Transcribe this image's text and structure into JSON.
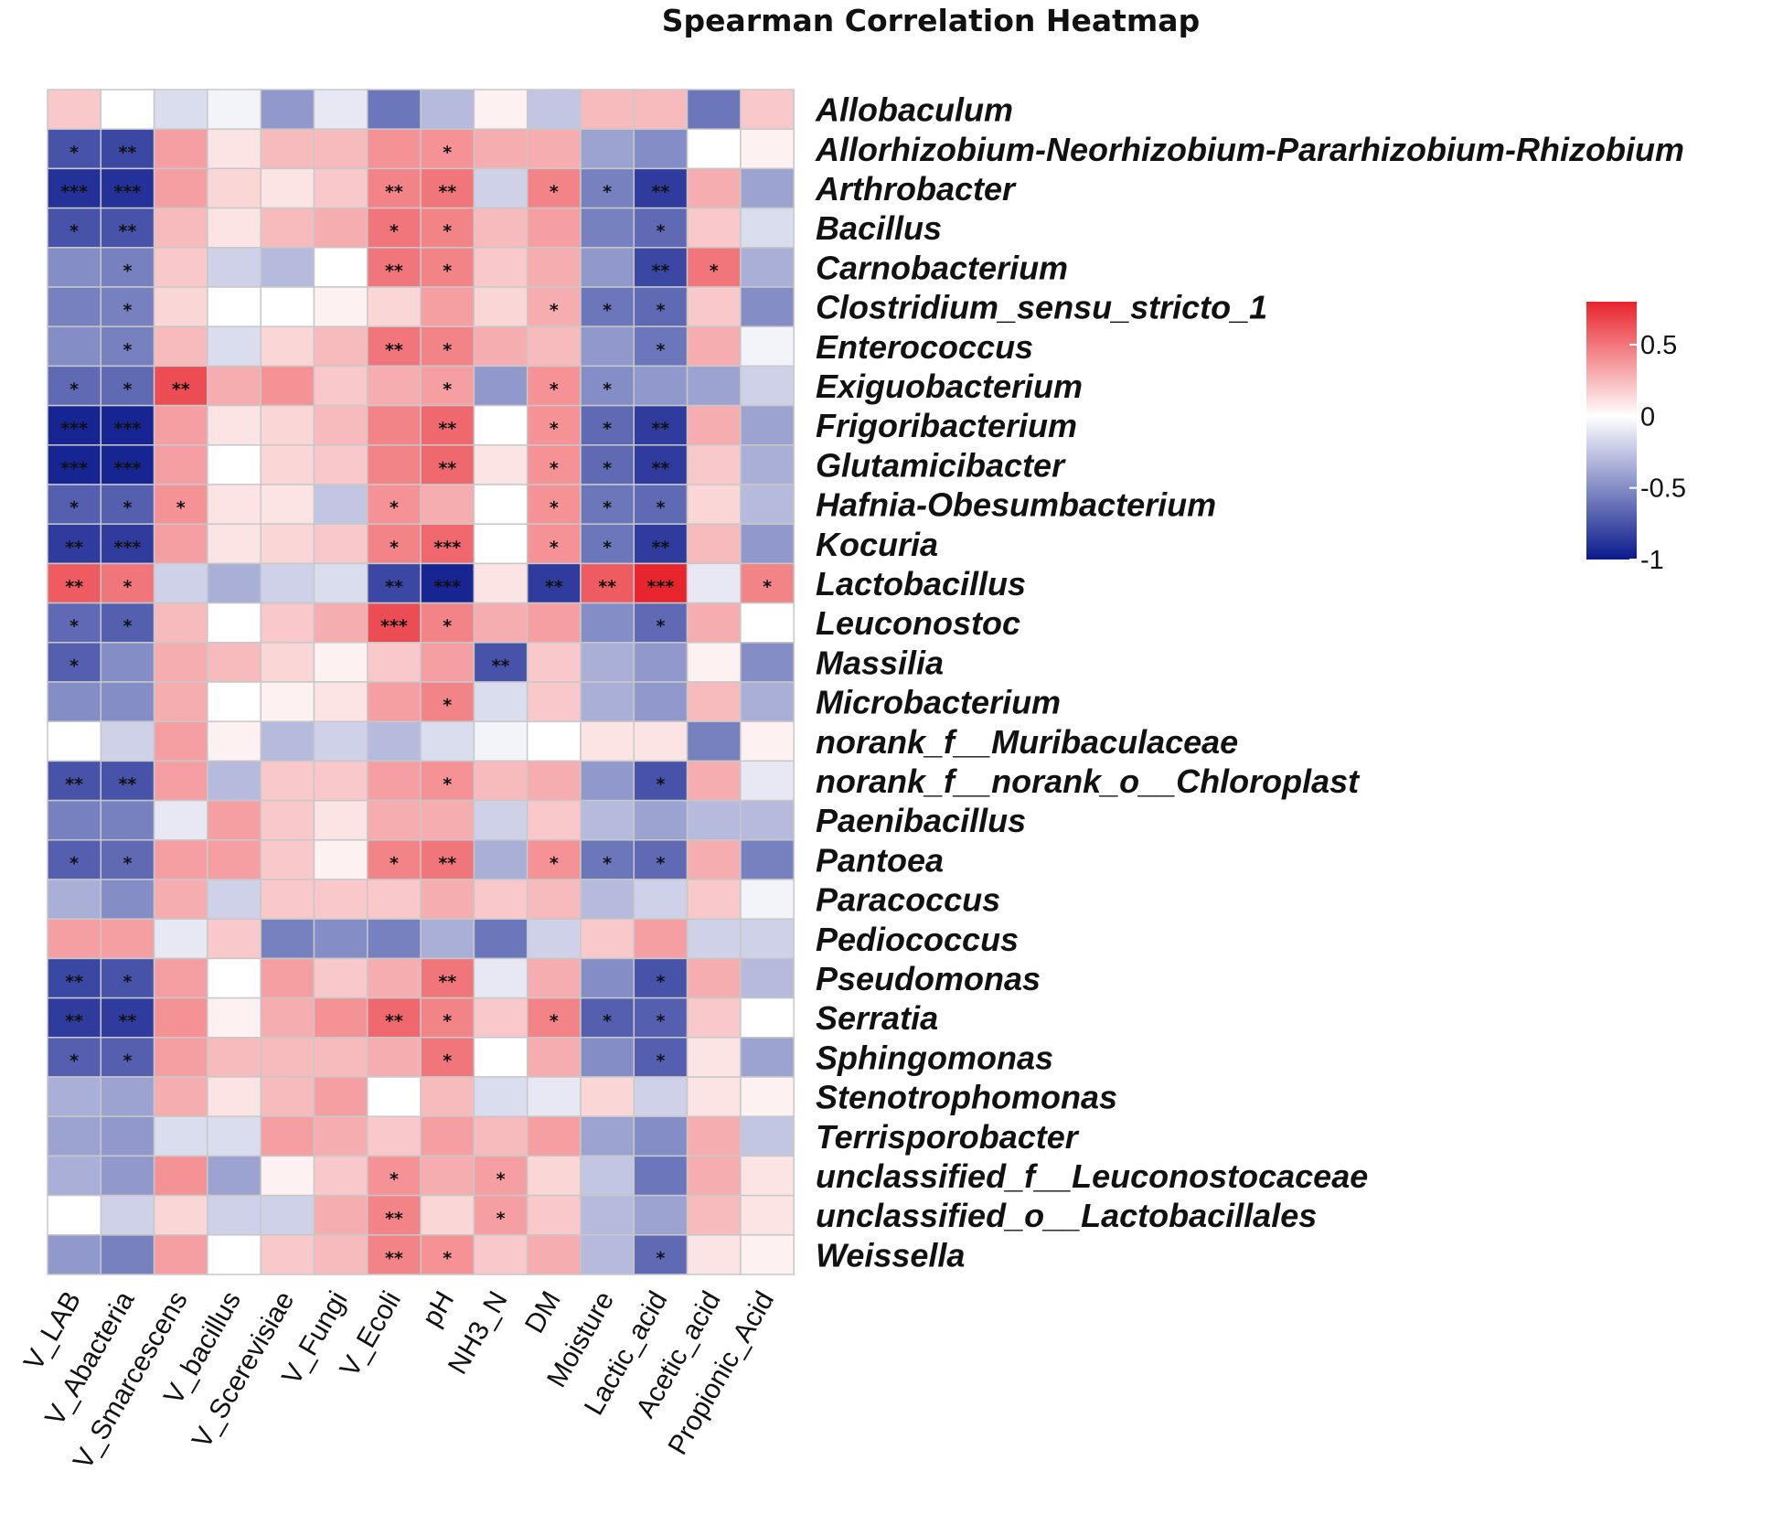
{
  "chart_data": {
    "type": "heatmap",
    "title": "Spearman Correlation Heatmap",
    "columns": [
      "V_LAB",
      "V_Abacteria",
      "V_Smarcescens",
      "V_bacillus",
      "V_Scerevisiae",
      "V_Fungi",
      "V_Ecoli",
      "pH",
      "NH3_N",
      "DM",
      "Moisture",
      "Lactic_acid",
      "Acetic_acid",
      "Propionic_Acid"
    ],
    "rows": [
      "Allobaculum",
      "Allorhizobium-Neorhizobium-Pararhizobium-Rhizobium",
      "Arthrobacter",
      "Bacillus",
      "Carnobacterium",
      "Clostridium_sensu_stricto_1",
      "Enterococcus",
      "Exiguobacterium",
      "Frigoribacterium",
      "Glutamicibacter",
      "Hafnia-Obesumbacterium",
      "Kocuria",
      "Lactobacillus",
      "Leuconostoc",
      "Massilia",
      "Microbacterium",
      "norank_f__Muribaculaceae",
      "norank_f__norank_o__Chloroplast",
      "Paenibacillus",
      "Pantoea",
      "Paracoccus",
      "Pediococcus",
      "Pseudomonas",
      "Serratia",
      "Sphingomonas",
      "Stenotrophomonas",
      "Terrisporobacter",
      "unclassified_f__Leuconostocaceae",
      "unclassified_o__Lactobacillales",
      "Weissella"
    ],
    "values": [
      [
        0.2,
        0.0,
        -0.15,
        -0.05,
        -0.45,
        -0.1,
        -0.6,
        -0.3,
        0.05,
        -0.25,
        0.25,
        0.25,
        -0.6,
        0.2
      ],
      [
        -0.75,
        -0.8,
        0.35,
        0.1,
        0.25,
        0.25,
        0.4,
        0.4,
        0.3,
        0.3,
        -0.4,
        -0.5,
        0.0,
        0.05
      ],
      [
        -0.9,
        -0.9,
        0.35,
        0.15,
        0.1,
        0.2,
        0.45,
        0.5,
        -0.2,
        0.45,
        -0.55,
        -0.85,
        0.3,
        -0.4
      ],
      [
        -0.75,
        -0.75,
        0.25,
        0.1,
        0.25,
        0.3,
        0.5,
        0.45,
        0.25,
        0.35,
        -0.55,
        -0.65,
        0.2,
        -0.15
      ],
      [
        -0.5,
        -0.55,
        0.2,
        -0.2,
        -0.3,
        0.0,
        0.5,
        0.45,
        0.2,
        0.3,
        -0.45,
        -0.8,
        0.5,
        -0.35
      ],
      [
        -0.55,
        -0.55,
        0.15,
        0.0,
        0.0,
        0.05,
        0.15,
        0.35,
        0.15,
        0.3,
        -0.6,
        -0.65,
        0.2,
        -0.5
      ],
      [
        -0.5,
        -0.55,
        0.25,
        -0.15,
        0.15,
        0.25,
        0.5,
        0.45,
        0.3,
        0.25,
        -0.45,
        -0.6,
        0.3,
        -0.05
      ],
      [
        -0.65,
        -0.65,
        0.65,
        0.3,
        0.4,
        0.2,
        0.3,
        0.35,
        -0.45,
        0.4,
        -0.5,
        -0.45,
        -0.4,
        -0.2
      ],
      [
        -0.95,
        -0.95,
        0.35,
        0.1,
        0.15,
        0.25,
        0.45,
        0.55,
        0.0,
        0.4,
        -0.65,
        -0.85,
        0.3,
        -0.4
      ],
      [
        -0.95,
        -0.95,
        0.35,
        0.0,
        0.15,
        0.2,
        0.45,
        0.55,
        0.1,
        0.4,
        -0.65,
        -0.85,
        0.2,
        -0.35
      ],
      [
        -0.7,
        -0.7,
        0.4,
        0.1,
        0.1,
        -0.25,
        0.4,
        0.3,
        0.0,
        0.4,
        -0.6,
        -0.65,
        0.15,
        -0.3
      ],
      [
        -0.85,
        -0.85,
        0.35,
        0.1,
        0.15,
        0.2,
        0.45,
        0.55,
        0.0,
        0.4,
        -0.6,
        -0.85,
        0.25,
        -0.45
      ],
      [
        0.6,
        0.5,
        -0.2,
        -0.35,
        -0.2,
        -0.15,
        -0.8,
        -0.95,
        0.1,
        -0.85,
        0.6,
        0.8,
        -0.1,
        0.45
      ],
      [
        -0.65,
        -0.7,
        0.25,
        0.0,
        0.2,
        0.3,
        0.65,
        0.45,
        0.3,
        0.35,
        -0.5,
        -0.65,
        0.3,
        0.0
      ],
      [
        -0.7,
        -0.5,
        0.3,
        0.25,
        0.15,
        0.05,
        0.2,
        0.35,
        -0.75,
        0.2,
        -0.35,
        -0.45,
        0.05,
        -0.5
      ],
      [
        -0.5,
        -0.5,
        0.3,
        0.0,
        0.05,
        0.1,
        0.35,
        0.45,
        -0.15,
        0.2,
        -0.35,
        -0.45,
        0.25,
        -0.35
      ],
      [
        0.0,
        -0.2,
        0.35,
        0.05,
        -0.3,
        -0.2,
        -0.3,
        -0.15,
        -0.05,
        0.0,
        0.1,
        0.1,
        -0.55,
        0.05
      ],
      [
        -0.75,
        -0.75,
        0.35,
        -0.3,
        0.2,
        0.2,
        0.35,
        0.4,
        0.25,
        0.3,
        -0.45,
        -0.75,
        0.3,
        -0.1
      ],
      [
        -0.55,
        -0.55,
        -0.1,
        0.35,
        0.2,
        0.1,
        0.3,
        0.3,
        -0.2,
        0.2,
        -0.3,
        -0.4,
        -0.3,
        -0.3
      ],
      [
        -0.7,
        -0.65,
        0.35,
        0.35,
        0.2,
        0.05,
        0.45,
        0.5,
        -0.35,
        0.4,
        -0.6,
        -0.65,
        0.3,
        -0.55
      ],
      [
        -0.35,
        -0.5,
        0.3,
        -0.2,
        0.2,
        0.2,
        0.2,
        0.3,
        0.2,
        0.25,
        -0.3,
        -0.2,
        0.2,
        -0.05
      ],
      [
        0.35,
        0.35,
        -0.1,
        0.2,
        -0.55,
        -0.5,
        -0.55,
        -0.35,
        -0.6,
        -0.2,
        0.2,
        0.35,
        -0.2,
        -0.2
      ],
      [
        -0.8,
        -0.75,
        0.35,
        0.0,
        0.35,
        0.2,
        0.3,
        0.5,
        -0.1,
        0.3,
        -0.5,
        -0.75,
        0.3,
        -0.3
      ],
      [
        -0.85,
        -0.85,
        0.4,
        0.05,
        0.3,
        0.4,
        0.55,
        0.45,
        0.2,
        0.45,
        -0.7,
        -0.7,
        0.2,
        0.0
      ],
      [
        -0.7,
        -0.7,
        0.35,
        0.25,
        0.25,
        0.25,
        0.3,
        0.5,
        0.0,
        0.3,
        -0.5,
        -0.7,
        0.1,
        -0.4
      ],
      [
        -0.35,
        -0.4,
        0.3,
        0.1,
        0.25,
        0.35,
        0.0,
        0.25,
        -0.15,
        -0.1,
        0.15,
        -0.2,
        0.1,
        0.05
      ],
      [
        -0.4,
        -0.45,
        -0.15,
        -0.15,
        0.35,
        0.3,
        0.2,
        0.35,
        0.25,
        0.35,
        -0.4,
        -0.5,
        0.3,
        -0.25
      ],
      [
        -0.35,
        -0.45,
        0.4,
        -0.4,
        0.05,
        0.2,
        0.4,
        0.3,
        0.35,
        0.15,
        -0.25,
        -0.6,
        0.3,
        0.1
      ],
      [
        0.0,
        -0.2,
        0.15,
        -0.2,
        -0.2,
        0.3,
        0.45,
        0.15,
        0.35,
        0.2,
        -0.3,
        -0.4,
        0.25,
        0.1
      ],
      [
        -0.45,
        -0.55,
        0.35,
        0.0,
        0.2,
        0.25,
        0.45,
        0.4,
        0.2,
        0.3,
        -0.3,
        -0.65,
        0.1,
        0.05
      ]
    ],
    "significance": [
      [
        "",
        "",
        "",
        "",
        "",
        "",
        "",
        "",
        "",
        "",
        "",
        "",
        "",
        ""
      ],
      [
        "*",
        "**",
        "",
        "",
        "",
        "",
        "",
        "*",
        "",
        "",
        "",
        "",
        "",
        ""
      ],
      [
        "***",
        "***",
        "",
        "",
        "",
        "",
        "**",
        "**",
        "",
        "*",
        "*",
        "**",
        "",
        ""
      ],
      [
        "*",
        "**",
        "",
        "",
        "",
        "",
        "*",
        "*",
        "",
        "",
        "",
        "*",
        "",
        ""
      ],
      [
        "",
        "*",
        "",
        "",
        "",
        "",
        "**",
        "*",
        "",
        "",
        "",
        "**",
        "*",
        ""
      ],
      [
        "",
        "*",
        "",
        "",
        "",
        "",
        "",
        "",
        "",
        "*",
        "*",
        "*",
        "",
        ""
      ],
      [
        "",
        "*",
        "",
        "",
        "",
        "",
        "**",
        "*",
        "",
        "",
        "",
        "*",
        "",
        ""
      ],
      [
        "*",
        "*",
        "**",
        "",
        "",
        "",
        "",
        "*",
        "",
        "*",
        "*",
        "",
        "",
        ""
      ],
      [
        "***",
        "***",
        "",
        "",
        "",
        "",
        "",
        "**",
        "",
        "*",
        "*",
        "**",
        "",
        ""
      ],
      [
        "***",
        "***",
        "",
        "",
        "",
        "",
        "",
        "**",
        "",
        "*",
        "*",
        "**",
        "",
        ""
      ],
      [
        "*",
        "*",
        "*",
        "",
        "",
        "",
        "*",
        "",
        "",
        "*",
        "*",
        "*",
        "",
        ""
      ],
      [
        "**",
        "***",
        "",
        "",
        "",
        "",
        "*",
        "***",
        "",
        "*",
        "*",
        "**",
        "",
        ""
      ],
      [
        "**",
        "*",
        "",
        "",
        "",
        "",
        "**",
        "***",
        "",
        "**",
        "**",
        "***",
        "",
        "*"
      ],
      [
        "*",
        "*",
        "",
        "",
        "",
        "",
        "***",
        "*",
        "",
        "",
        "",
        "*",
        "",
        ""
      ],
      [
        "*",
        "",
        "",
        "",
        "",
        "",
        "",
        "",
        "**",
        "",
        "",
        "",
        "",
        ""
      ],
      [
        "",
        "",
        "",
        "",
        "",
        "",
        "",
        "*",
        "",
        "",
        "",
        "",
        "",
        ""
      ],
      [
        "",
        "",
        "",
        "",
        "",
        "",
        "",
        "",
        "",
        "",
        "",
        "",
        "",
        ""
      ],
      [
        "**",
        "**",
        "",
        "",
        "",
        "",
        "",
        "*",
        "",
        "",
        "",
        "*",
        "",
        ""
      ],
      [
        "",
        "",
        "",
        "",
        "",
        "",
        "",
        "",
        "",
        "",
        "",
        "",
        "",
        ""
      ],
      [
        "*",
        "*",
        "",
        "",
        "",
        "",
        "*",
        "**",
        "",
        "*",
        "*",
        "*",
        "",
        ""
      ],
      [
        "",
        "",
        "",
        "",
        "",
        "",
        "",
        "",
        "",
        "",
        "",
        "",
        "",
        ""
      ],
      [
        "",
        "",
        "",
        "",
        "",
        "",
        "",
        "",
        "",
        "",
        "",
        "",
        "",
        ""
      ],
      [
        "**",
        "*",
        "",
        "",
        "",
        "",
        "",
        "**",
        "",
        "",
        "",
        "*",
        "",
        ""
      ],
      [
        "**",
        "**",
        "",
        "",
        "",
        "",
        "**",
        "*",
        "",
        "*",
        "*",
        "*",
        "",
        ""
      ],
      [
        "*",
        "*",
        "",
        "",
        "",
        "",
        "",
        "*",
        "",
        "",
        "",
        "*",
        "",
        ""
      ],
      [
        "",
        "",
        "",
        "",
        "",
        "",
        "",
        "",
        "",
        "",
        "",
        "",
        "",
        ""
      ],
      [
        "",
        "",
        "",
        "",
        "",
        "",
        "",
        "",
        "",
        "",
        "",
        "",
        "",
        ""
      ],
      [
        "",
        "",
        "",
        "",
        "",
        "",
        "*",
        "",
        "*",
        "",
        "",
        "",
        "",
        ""
      ],
      [
        "",
        "",
        "",
        "",
        "",
        "",
        "**",
        "",
        "*",
        "",
        "",
        "",
        "",
        ""
      ],
      [
        "",
        "",
        "",
        "",
        "",
        "",
        "**",
        "*",
        "",
        "",
        "",
        "*",
        "",
        ""
      ]
    ],
    "legend": {
      "position": "right",
      "ticks": [
        "0.5",
        "0",
        "-0.5",
        "-1"
      ],
      "tick_values": [
        0.5,
        0,
        -0.5,
        -1
      ],
      "range": [
        -1,
        0.8
      ]
    },
    "colors": {
      "negative": "#0a1a8c",
      "zero": "#ffffff",
      "positive": "#e8242c",
      "border": "#c8c8c8"
    }
  }
}
